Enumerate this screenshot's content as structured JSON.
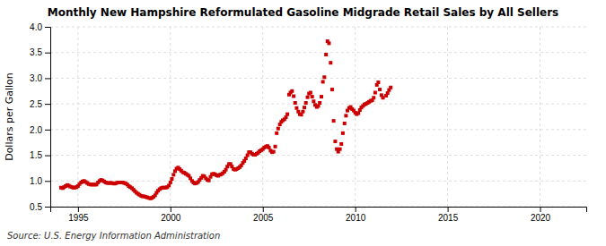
{
  "chart_data": {
    "type": "scatter",
    "title": "Monthly New Hampshire Reformulated Gasoline Midgrade Retail Sales by All Sellers",
    "ylabel": "Dollars per Gallon",
    "source": "Source: U.S. Energy Information Administration",
    "color": "#cc0000",
    "marker": "square",
    "grid": true,
    "xlim": [
      1993.5,
      2022.5
    ],
    "ylim": [
      0.5,
      4.0
    ],
    "xticks": [
      1995,
      2000,
      2005,
      2010,
      2015,
      2020
    ],
    "yticks": [
      0.5,
      {
        "value": 1.0,
        "label": "1.0"
      },
      1.5,
      {
        "value": 2.0,
        "label": "2.0"
      },
      2.5,
      {
        "value": 3.0,
        "label": "3.0"
      },
      3.5,
      {
        "value": 4.0,
        "label": "4.0"
      }
    ],
    "x": [
      1994.08,
      1994.17,
      1994.25,
      1994.33,
      1994.42,
      1994.5,
      1994.58,
      1994.67,
      1994.75,
      1994.83,
      1994.92,
      1995.0,
      1995.08,
      1995.17,
      1995.25,
      1995.33,
      1995.42,
      1995.5,
      1995.58,
      1995.67,
      1995.75,
      1995.83,
      1995.92,
      1996.0,
      1996.08,
      1996.17,
      1996.25,
      1996.33,
      1996.42,
      1996.5,
      1996.58,
      1996.67,
      1996.75,
      1996.83,
      1996.92,
      1997.0,
      1997.08,
      1997.17,
      1997.25,
      1997.33,
      1997.42,
      1997.5,
      1997.58,
      1997.67,
      1997.75,
      1997.83,
      1997.92,
      1998.0,
      1998.08,
      1998.17,
      1998.25,
      1998.33,
      1998.42,
      1998.5,
      1998.58,
      1998.67,
      1998.75,
      1998.83,
      1998.92,
      1999.0,
      1999.08,
      1999.17,
      1999.25,
      1999.33,
      1999.42,
      1999.5,
      1999.58,
      1999.67,
      1999.75,
      1999.83,
      1999.92,
      2000.0,
      2000.08,
      2000.17,
      2000.25,
      2000.33,
      2000.42,
      2000.5,
      2000.58,
      2000.67,
      2000.75,
      2000.83,
      2000.92,
      2001.0,
      2001.08,
      2001.17,
      2001.25,
      2001.33,
      2001.42,
      2001.5,
      2001.58,
      2001.67,
      2001.75,
      2001.83,
      2001.92,
      2002.0,
      2002.08,
      2002.17,
      2002.25,
      2002.33,
      2002.42,
      2002.5,
      2002.58,
      2002.67,
      2002.75,
      2002.83,
      2002.92,
      2003.0,
      2003.08,
      2003.17,
      2003.25,
      2003.33,
      2003.42,
      2003.5,
      2003.58,
      2003.67,
      2003.75,
      2003.83,
      2003.92,
      2004.0,
      2004.08,
      2004.17,
      2004.25,
      2004.33,
      2004.42,
      2004.5,
      2004.58,
      2004.67,
      2004.75,
      2004.83,
      2004.92,
      2005.0,
      2005.08,
      2005.17,
      2005.25,
      2005.33,
      2005.42,
      2005.5,
      2005.58,
      2005.67,
      2005.75,
      2005.83,
      2005.92,
      2006.0,
      2006.08,
      2006.17,
      2006.25,
      2006.33,
      2006.42,
      2006.5,
      2006.58,
      2006.67,
      2006.75,
      2006.83,
      2006.92,
      2007.0,
      2007.08,
      2007.17,
      2007.25,
      2007.33,
      2007.42,
      2007.5,
      2007.58,
      2007.67,
      2007.75,
      2007.83,
      2007.92,
      2008.0,
      2008.08,
      2008.17,
      2008.25,
      2008.33,
      2008.42,
      2008.5,
      2008.58,
      2008.67,
      2008.75,
      2008.83,
      2008.92,
      2009.0,
      2009.08,
      2009.17,
      2009.25,
      2009.33,
      2009.42,
      2009.5,
      2009.58,
      2009.67,
      2009.75,
      2009.83,
      2009.92,
      2010.0,
      2010.08,
      2010.17,
      2010.25,
      2010.33,
      2010.42,
      2010.5,
      2010.58,
      2010.67,
      2010.75,
      2010.83,
      2010.92,
      2011.0,
      2011.08,
      2011.17,
      2011.25,
      2011.33,
      2011.42,
      2011.5,
      2011.67,
      2011.75,
      2011.83,
      2011.92
    ],
    "values": [
      0.87,
      0.86,
      0.88,
      0.9,
      0.92,
      0.91,
      0.89,
      0.88,
      0.87,
      0.87,
      0.88,
      0.9,
      0.94,
      0.97,
      0.99,
      1.0,
      0.98,
      0.96,
      0.94,
      0.93,
      0.93,
      0.93,
      0.93,
      0.93,
      0.97,
      1.0,
      1.02,
      1.01,
      0.99,
      0.97,
      0.96,
      0.96,
      0.96,
      0.96,
      0.95,
      0.95,
      0.96,
      0.97,
      0.97,
      0.97,
      0.97,
      0.96,
      0.95,
      0.93,
      0.9,
      0.88,
      0.86,
      0.83,
      0.8,
      0.77,
      0.75,
      0.73,
      0.71,
      0.7,
      0.7,
      0.69,
      0.68,
      0.67,
      0.66,
      0.67,
      0.69,
      0.72,
      0.77,
      0.81,
      0.84,
      0.86,
      0.87,
      0.87,
      0.87,
      0.88,
      0.91,
      0.97,
      1.04,
      1.12,
      1.19,
      1.24,
      1.26,
      1.23,
      1.2,
      1.17,
      1.16,
      1.14,
      1.12,
      1.1,
      1.05,
      1.0,
      0.97,
      0.95,
      0.96,
      0.98,
      1.02,
      1.06,
      1.1,
      1.09,
      1.05,
      1.02,
      1.01,
      1.08,
      1.13,
      1.14,
      1.13,
      1.11,
      1.1,
      1.12,
      1.13,
      1.15,
      1.18,
      1.22,
      1.28,
      1.33,
      1.33,
      1.28,
      1.23,
      1.22,
      1.23,
      1.25,
      1.27,
      1.3,
      1.35,
      1.39,
      1.44,
      1.5,
      1.56,
      1.56,
      1.53,
      1.51,
      1.51,
      1.53,
      1.55,
      1.58,
      1.6,
      1.62,
      1.65,
      1.67,
      1.68,
      1.65,
      1.59,
      1.56,
      1.57,
      1.67,
      1.93,
      2.02,
      2.1,
      2.15,
      2.18,
      2.2,
      2.24,
      2.3,
      2.68,
      2.72,
      2.75,
      2.65,
      2.52,
      2.42,
      2.35,
      2.3,
      2.29,
      2.35,
      2.43,
      2.52,
      2.63,
      2.7,
      2.72,
      2.64,
      2.55,
      2.48,
      2.44,
      2.46,
      2.52,
      2.64,
      2.93,
      3.02,
      3.46,
      3.72,
      3.68,
      3.3,
      2.78,
      2.17,
      1.77,
      1.62,
      1.57,
      1.62,
      1.72,
      1.93,
      2.12,
      2.27,
      2.37,
      2.42,
      2.44,
      2.4,
      2.37,
      2.33,
      2.3,
      2.32,
      2.38,
      2.43,
      2.46,
      2.49,
      2.5,
      2.52,
      2.54,
      2.56,
      2.57,
      2.62,
      2.72,
      2.87,
      2.92,
      2.78,
      2.67,
      2.62,
      2.66,
      2.71,
      2.77,
      2.82
    ]
  }
}
